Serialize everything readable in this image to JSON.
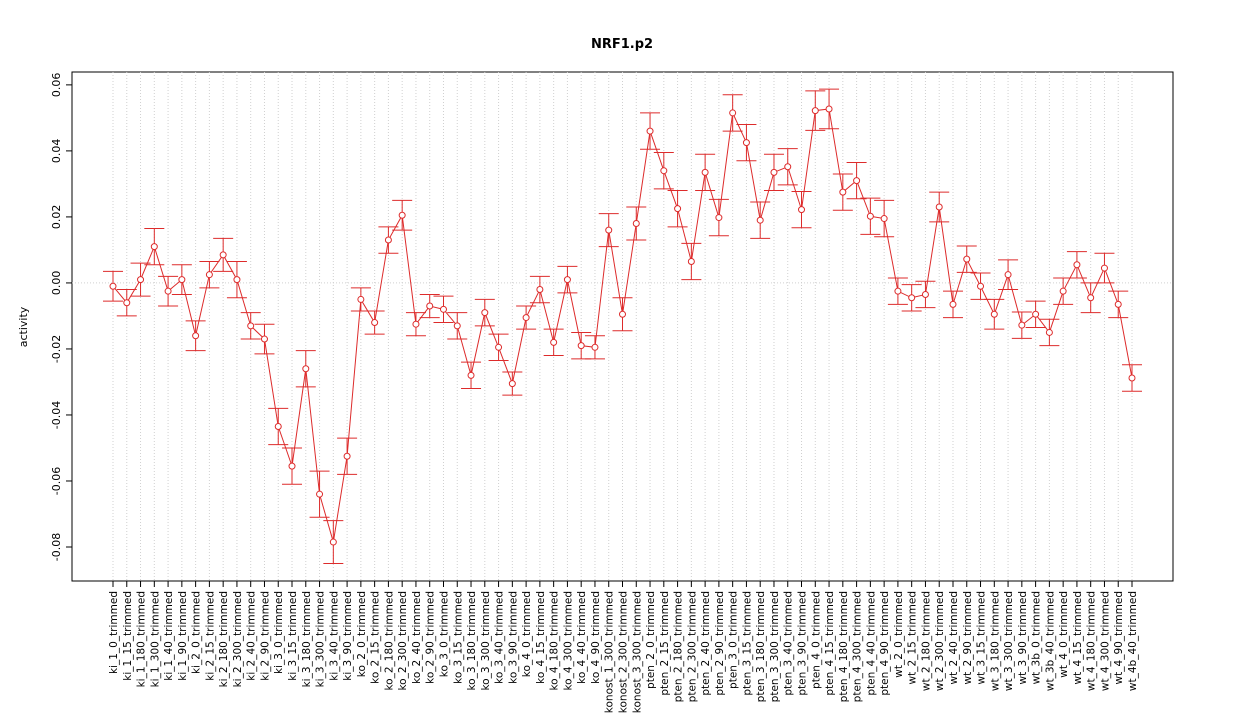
{
  "chart_data": {
    "type": "errorbar_line",
    "title": "NRF1.p2",
    "y_label": "activity",
    "categories": [
      "ki_1_0_trimmed",
      "ki_1_15_trimmed",
      "ki_1_180_trimmed",
      "ki_1_300_trimmed",
      "ki_1_40_trimmed",
      "ki_1_90_trimmed",
      "ki_2_0_trimmed",
      "ki_2_15_trimmed",
      "ki_2_180_trimmed",
      "ki_2_300_trimmed",
      "ki_2_40_trimmed",
      "ki_2_90_trimmed",
      "ki_3_0_trimmed",
      "ki_3_15_trimmed",
      "ki_3_180_trimmed",
      "ki_3_300_trimmed",
      "ki_3_40_trimmed",
      "ki_3_90_trimmed",
      "ko_2_0_trimmed",
      "ko_2_15_trimmed",
      "ko_2_180_trimmed",
      "ko_2_300_trimmed",
      "ko_2_40_trimmed",
      "ko_2_90_trimmed",
      "ko_3_0_trimmed",
      "ko_3_15_trimmed",
      "ko_3_180_trimmed",
      "ko_3_300_trimmed",
      "ko_3_40_trimmed",
      "ko_3_90_trimmed",
      "ko_4_0_trimmed",
      "ko_4_15_trimmed",
      "ko_4_180_trimmed",
      "ko_4_300_trimmed",
      "ko_4_40_trimmed",
      "ko_4_90_trimmed",
      "konost_1_300_trimmed",
      "konost_2_300_trimmed",
      "konost_3_300_trimmed",
      "pten_2_0_trimmed",
      "pten_2_15_trimmed",
      "pten_2_180_trimmed",
      "pten_2_300_trimmed",
      "pten_2_40_trimmed",
      "pten_2_90_trimmed",
      "pten_3_0_trimmed",
      "pten_3_15_trimmed",
      "pten_3_180_trimmed",
      "pten_3_300_trimmed",
      "pten_3_40_trimmed",
      "pten_3_90_trimmed",
      "pten_4_0_trimmed",
      "pten_4_15_trimmed",
      "pten_4_180_trimmed",
      "pten_4_300_trimmed",
      "pten_4_40_trimmed",
      "pten_4_90_trimmed",
      "wt_2_0_trimmed",
      "wt_2_15_trimmed",
      "wt_2_180_trimmed",
      "wt_2_300_trimmed",
      "wt_2_40_trimmed",
      "wt_2_90_trimmed",
      "wt_3_15_trimmed",
      "wt_3_180_trimmed",
      "wt_3_300_trimmed",
      "wt_3_90_trimmed",
      "wt_3b_0_trimmed",
      "wt_3b_40_trimmed",
      "wt_4_0_trimmed",
      "wt_4_15_trimmed",
      "wt_4_180_trimmed",
      "wt_4_300_trimmed",
      "wt_4_90_trimmed",
      "wt_4b_40_trimmed"
    ],
    "series": [
      {
        "color": "#dd2b2b",
        "values": [
          -0.001,
          -0.006,
          0.001,
          0.011,
          -0.0025,
          0.001,
          -0.016,
          0.0025,
          0.0085,
          0.001,
          -0.013,
          -0.017,
          -0.0435,
          -0.0555,
          -0.026,
          -0.064,
          -0.0785,
          -0.0525,
          -0.005,
          -0.012,
          0.013,
          0.0205,
          -0.0125,
          -0.007,
          -0.008,
          -0.013,
          -0.028,
          -0.009,
          -0.0195,
          -0.0305,
          -0.0105,
          -0.002,
          -0.018,
          0.001,
          -0.019,
          -0.0195,
          0.016,
          -0.0095,
          0.018,
          0.046,
          0.034,
          0.0225,
          0.0065,
          0.0335,
          0.0198,
          0.0515,
          0.0425,
          0.019,
          0.0335,
          0.0352,
          0.0222,
          0.0522,
          0.0527,
          0.0275,
          0.031,
          0.0202,
          0.0195,
          -0.0025,
          -0.0045,
          -0.0035,
          0.023,
          -0.0065,
          0.0072,
          -0.001,
          -0.0095,
          0.0025,
          -0.0128,
          -0.0095,
          -0.015,
          -0.0025,
          0.0055,
          -0.0045,
          0.0045,
          -0.0065,
          -0.0288
        ],
        "errors": [
          0.0045,
          0.004,
          0.005,
          0.0055,
          0.0045,
          0.0045,
          0.0045,
          0.004,
          0.005,
          0.0055,
          0.004,
          0.0045,
          0.0055,
          0.0055,
          0.0055,
          0.007,
          0.0065,
          0.0055,
          0.0035,
          0.0035,
          0.004,
          0.0045,
          0.0035,
          0.0035,
          0.004,
          0.004,
          0.004,
          0.004,
          0.004,
          0.0035,
          0.0035,
          0.004,
          0.004,
          0.004,
          0.004,
          0.0035,
          0.005,
          0.005,
          0.005,
          0.0055,
          0.0055,
          0.0055,
          0.0055,
          0.0055,
          0.0055,
          0.0055,
          0.0055,
          0.0055,
          0.0055,
          0.0055,
          0.0055,
          0.006,
          0.006,
          0.0055,
          0.0055,
          0.0055,
          0.0055,
          0.004,
          0.004,
          0.004,
          0.0045,
          0.004,
          0.004,
          0.004,
          0.0045,
          0.0045,
          0.004,
          0.004,
          0.004,
          0.004,
          0.004,
          0.0045,
          0.0045,
          0.004,
          0.004
        ]
      }
    ],
    "ylim": [
      -0.0903,
      0.0639
    ],
    "yticks": [
      -0.08,
      -0.06,
      -0.04,
      -0.02,
      {
        "value": 0,
        "label": "0.00"
      },
      0.02,
      0.04,
      0.06
    ],
    "grid": true,
    "reference_line": 0
  }
}
